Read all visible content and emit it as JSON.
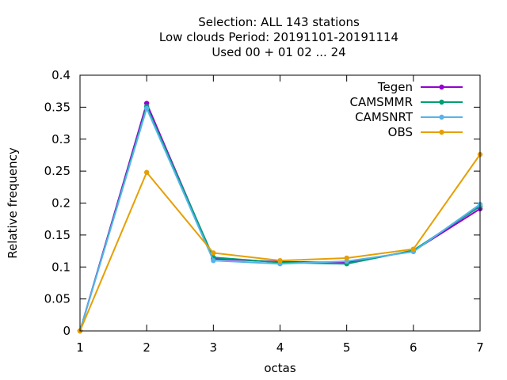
{
  "chart_data": {
    "type": "line",
    "title_lines": [
      "Selection: ALL     143 stations",
      "Low clouds  Period: 20191101-20191114",
      "Used  00 + 01 02 ... 24"
    ],
    "xlabel": "octas",
    "ylabel": "Relative frequency",
    "x": [
      1,
      2,
      3,
      4,
      5,
      6,
      7
    ],
    "xlim": [
      1,
      7
    ],
    "ylim": [
      0,
      0.4
    ],
    "x_ticks": [
      "1",
      "2",
      "3",
      "4",
      "5",
      "6",
      "7"
    ],
    "y_ticks": [
      "0",
      "0.05",
      "0.1",
      "0.15",
      "0.2",
      "0.25",
      "0.3",
      "0.35",
      "0.4"
    ],
    "legend_position": "top-right",
    "grid": false,
    "series": [
      {
        "name": "Tegen",
        "color": "#9400d3",
        "values": [
          0,
          0.356,
          0.113,
          0.108,
          0.107,
          0.125,
          0.191
        ]
      },
      {
        "name": "CAMSMMR",
        "color": "#009e73",
        "values": [
          0,
          0.351,
          0.115,
          0.107,
          0.105,
          0.126,
          0.195
        ]
      },
      {
        "name": "CAMSNRT",
        "color": "#56b4e9",
        "values": [
          0,
          0.348,
          0.11,
          0.105,
          0.109,
          0.124,
          0.198
        ]
      },
      {
        "name": "OBS",
        "color": "#e69f00",
        "values": [
          0,
          0.248,
          0.122,
          0.11,
          0.114,
          0.128,
          0.276
        ]
      }
    ]
  }
}
